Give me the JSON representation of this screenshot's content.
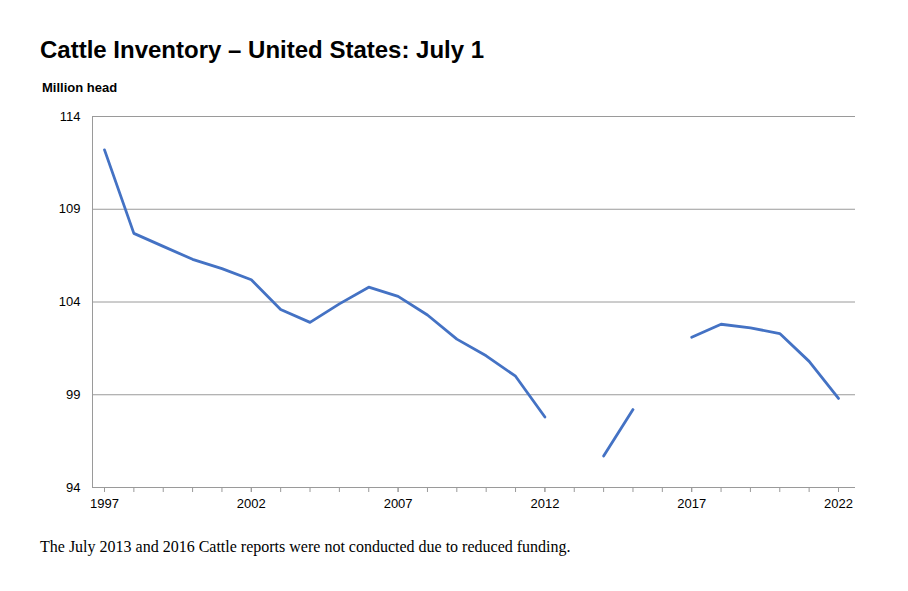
{
  "chart_data": {
    "type": "line",
    "title": "Cattle Inventory – United States: July 1",
    "y_label": "Million head",
    "caption": "The July 2013 and 2016 Cattle reports were not conducted due to reduced funding.",
    "x": [
      1997,
      1998,
      1999,
      2000,
      2001,
      2002,
      2003,
      2004,
      2005,
      2006,
      2007,
      2008,
      2009,
      2010,
      2011,
      2012,
      2013,
      2014,
      2015,
      2016,
      2017,
      2018,
      2019,
      2020,
      2021,
      2022
    ],
    "values": [
      112.2,
      107.7,
      107.0,
      106.3,
      105.8,
      105.2,
      103.6,
      102.9,
      103.9,
      104.8,
      104.3,
      103.3,
      102.0,
      101.1,
      100.0,
      97.8,
      null,
      95.7,
      98.2,
      null,
      102.1,
      102.8,
      102.6,
      102.3,
      100.8,
      98.8
    ],
    "color": "#4472c4",
    "xlim": [
      1997,
      2022
    ],
    "ylim": [
      94,
      114
    ],
    "xticks": [
      1997,
      2002,
      2007,
      2012,
      2017,
      2022
    ],
    "yticks": [
      94,
      99,
      104,
      109,
      114
    ],
    "grid": true
  }
}
